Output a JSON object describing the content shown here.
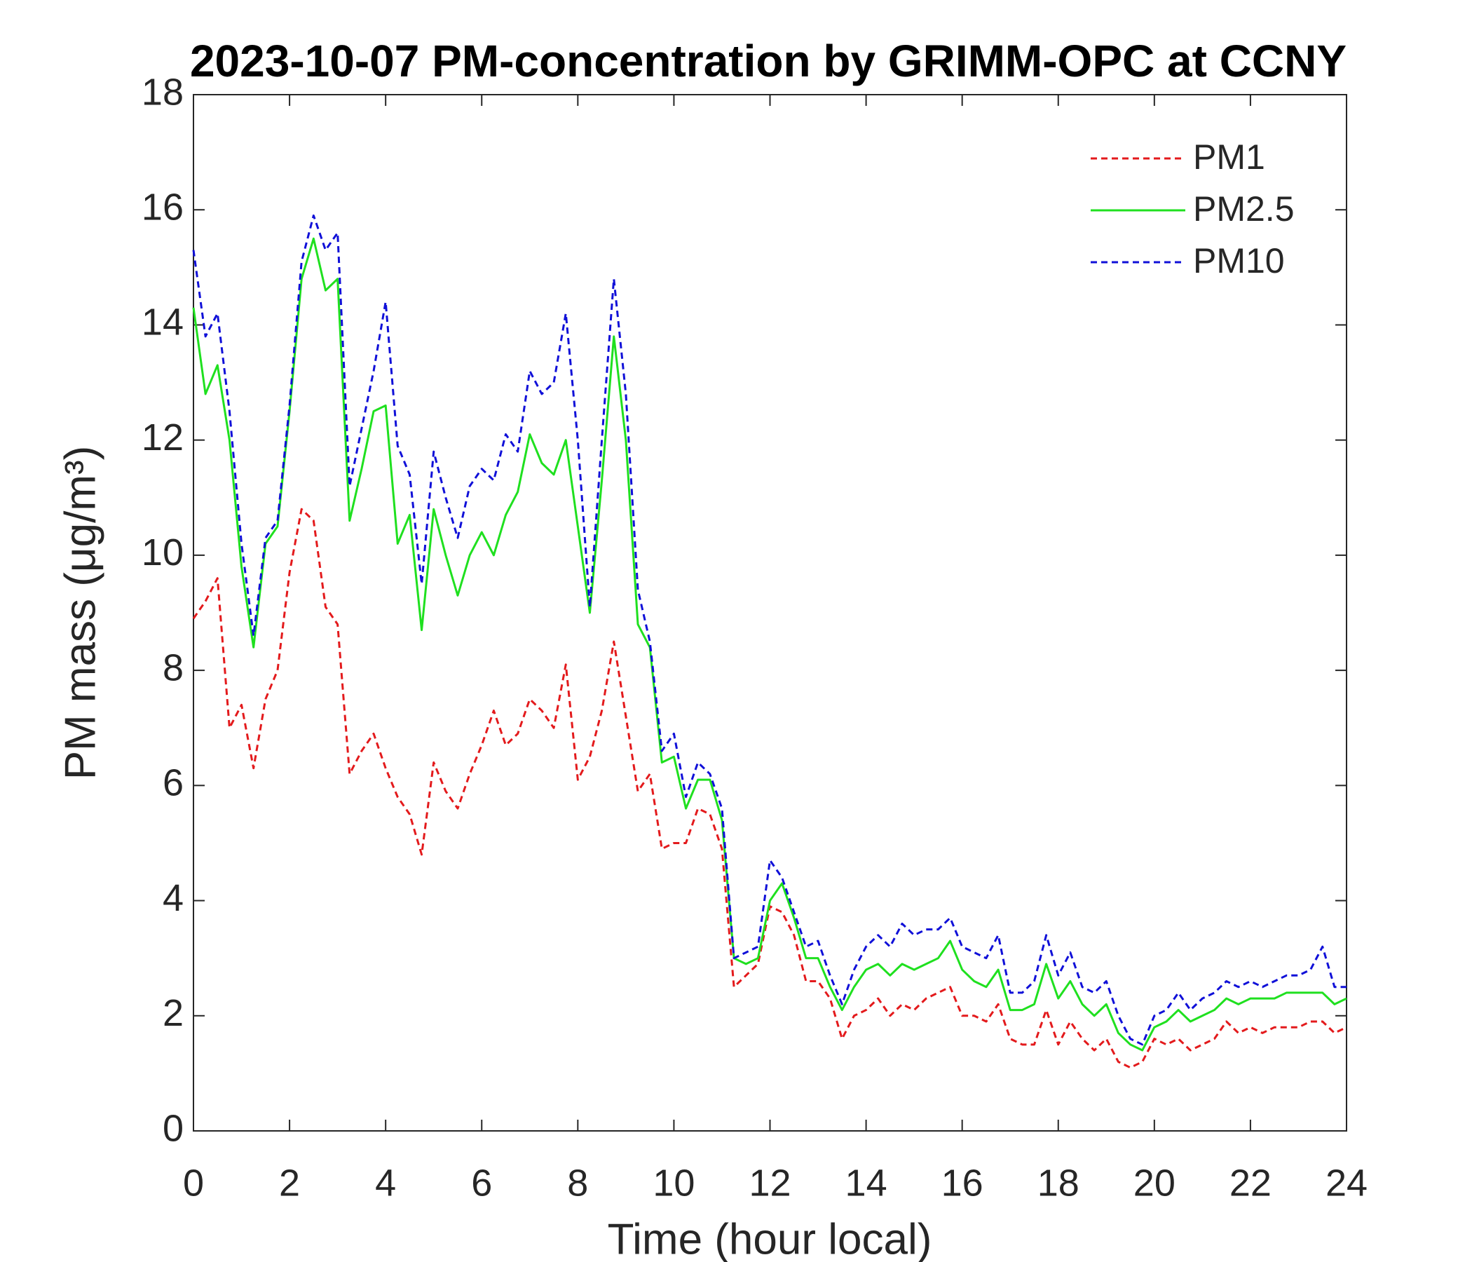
{
  "chart_data": {
    "type": "line",
    "title": "2023-10-07 PM-concentration by GRIMM-OPC at CCNY",
    "xlabel": "Time (hour local)",
    "ylabel": "PM mass (μg/m³)",
    "xlim": [
      0,
      24
    ],
    "ylim": [
      0,
      18
    ],
    "xticks": [
      0,
      2,
      4,
      6,
      8,
      10,
      12,
      14,
      16,
      18,
      20,
      22,
      24
    ],
    "yticks": [
      0,
      2,
      4,
      6,
      8,
      10,
      12,
      14,
      16,
      18
    ],
    "legend": "northeast",
    "x": [
      0,
      0.25,
      0.5,
      0.75,
      1,
      1.25,
      1.5,
      1.75,
      2,
      2.25,
      2.5,
      2.75,
      3,
      3.25,
      3.5,
      3.75,
      4,
      4.25,
      4.5,
      4.75,
      5,
      5.25,
      5.5,
      5.75,
      6,
      6.25,
      6.5,
      6.75,
      7,
      7.25,
      7.5,
      7.75,
      8,
      8.25,
      8.5,
      8.75,
      9,
      9.25,
      9.5,
      9.75,
      10,
      10.25,
      10.5,
      10.75,
      11,
      11.25,
      11.5,
      11.75,
      12,
      12.25,
      12.5,
      12.75,
      13,
      13.25,
      13.5,
      13.75,
      14,
      14.25,
      14.5,
      14.75,
      15,
      15.25,
      15.5,
      15.75,
      16,
      16.25,
      16.5,
      16.75,
      17,
      17.25,
      17.5,
      17.75,
      18,
      18.25,
      18.5,
      18.75,
      19,
      19.25,
      19.5,
      19.75,
      20,
      20.25,
      20.5,
      20.75,
      21,
      21.25,
      21.5,
      21.75,
      22,
      22.25,
      22.5,
      22.75,
      23,
      23.25,
      23.5,
      23.75,
      24
    ],
    "series": [
      {
        "name": "PM1",
        "color": "#e31a1c",
        "dash": true,
        "values": [
          8.9,
          9.2,
          9.6,
          7.0,
          7.4,
          6.3,
          7.5,
          8.0,
          9.7,
          10.8,
          10.6,
          9.1,
          8.8,
          6.2,
          6.6,
          6.9,
          6.3,
          5.8,
          5.5,
          4.8,
          6.4,
          5.9,
          5.6,
          6.2,
          6.7,
          7.3,
          6.7,
          6.9,
          7.5,
          7.3,
          7.0,
          8.1,
          6.1,
          6.5,
          7.3,
          8.5,
          7.2,
          5.9,
          6.2,
          4.9,
          5.0,
          5.0,
          5.6,
          5.5,
          4.9,
          2.5,
          2.7,
          2.9,
          3.9,
          3.8,
          3.4,
          2.6,
          2.6,
          2.3,
          1.6,
          2.0,
          2.1,
          2.3,
          2.0,
          2.2,
          2.1,
          2.3,
          2.4,
          2.5,
          2.0,
          2.0,
          1.9,
          2.2,
          1.6,
          1.5,
          1.5,
          2.1,
          1.5,
          1.9,
          1.6,
          1.4,
          1.6,
          1.2,
          1.1,
          1.2,
          1.6,
          1.5,
          1.6,
          1.4,
          1.5,
          1.6,
          1.9,
          1.7,
          1.8,
          1.7,
          1.8,
          1.8,
          1.8,
          1.9,
          1.9,
          1.7,
          1.8
        ]
      },
      {
        "name": "PM2.5",
        "color": "#1fe01f",
        "dash": false,
        "values": [
          14.3,
          12.8,
          13.3,
          12.0,
          9.8,
          8.4,
          10.2,
          10.5,
          12.5,
          14.8,
          15.5,
          14.6,
          14.8,
          10.6,
          11.5,
          12.5,
          12.6,
          10.2,
          10.7,
          8.7,
          10.8,
          10.0,
          9.3,
          10.0,
          10.4,
          10.0,
          10.7,
          11.1,
          12.1,
          11.6,
          11.4,
          12.0,
          10.5,
          9.0,
          11.3,
          13.8,
          12.0,
          8.8,
          8.4,
          6.4,
          6.5,
          5.6,
          6.1,
          6.1,
          5.4,
          3.0,
          2.9,
          3.0,
          4.0,
          4.3,
          3.7,
          3.0,
          3.0,
          2.5,
          2.1,
          2.5,
          2.8,
          2.9,
          2.7,
          2.9,
          2.8,
          2.9,
          3.0,
          3.3,
          2.8,
          2.6,
          2.5,
          2.8,
          2.1,
          2.1,
          2.2,
          2.9,
          2.3,
          2.6,
          2.2,
          2.0,
          2.2,
          1.7,
          1.5,
          1.4,
          1.8,
          1.9,
          2.1,
          1.9,
          2.0,
          2.1,
          2.3,
          2.2,
          2.3,
          2.3,
          2.3,
          2.4,
          2.4,
          2.4,
          2.4,
          2.2,
          2.3
        ]
      },
      {
        "name": "PM10",
        "color": "#1010d8",
        "dash": true,
        "values": [
          15.3,
          13.8,
          14.2,
          12.5,
          10.2,
          8.6,
          10.3,
          10.6,
          12.6,
          15.1,
          15.9,
          15.3,
          15.6,
          11.2,
          12.2,
          13.2,
          14.4,
          11.9,
          11.4,
          9.5,
          11.8,
          11.0,
          10.3,
          11.2,
          11.5,
          11.3,
          12.1,
          11.8,
          13.2,
          12.8,
          13.0,
          14.2,
          12.0,
          9.1,
          12.0,
          14.8,
          12.8,
          9.4,
          8.5,
          6.6,
          6.9,
          5.8,
          6.4,
          6.2,
          5.6,
          3.0,
          3.1,
          3.2,
          4.7,
          4.4,
          3.8,
          3.2,
          3.3,
          2.7,
          2.2,
          2.8,
          3.2,
          3.4,
          3.2,
          3.6,
          3.4,
          3.5,
          3.5,
          3.7,
          3.2,
          3.1,
          3.0,
          3.4,
          2.4,
          2.4,
          2.6,
          3.4,
          2.7,
          3.1,
          2.5,
          2.4,
          2.6,
          2.0,
          1.6,
          1.5,
          2.0,
          2.1,
          2.4,
          2.1,
          2.3,
          2.4,
          2.6,
          2.5,
          2.6,
          2.5,
          2.6,
          2.7,
          2.7,
          2.8,
          3.2,
          2.5,
          2.5
        ]
      }
    ]
  }
}
